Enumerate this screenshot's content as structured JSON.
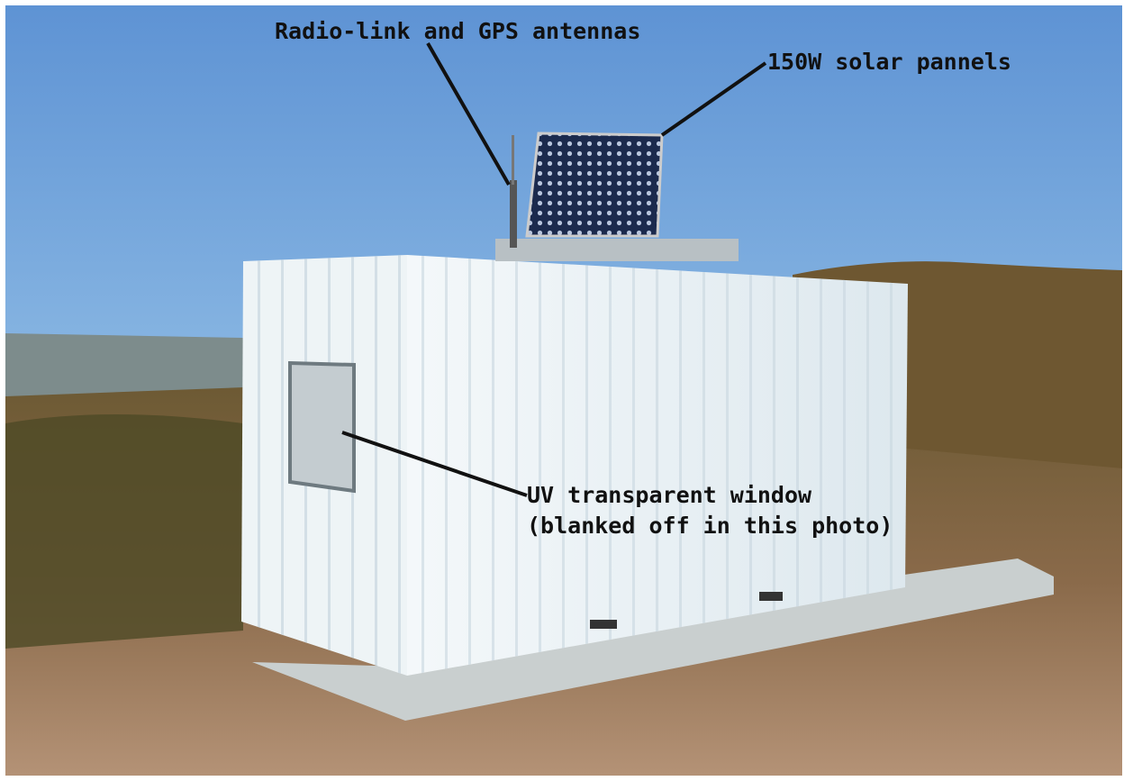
{
  "annotations": [
    {
      "lines": [
        "Radio-link and GPS antennas"
      ]
    },
    {
      "lines": [
        "150W solar pannels"
      ]
    },
    {
      "lines": [
        "UV transparent window",
        "(blanked off in this photo)"
      ]
    }
  ]
}
